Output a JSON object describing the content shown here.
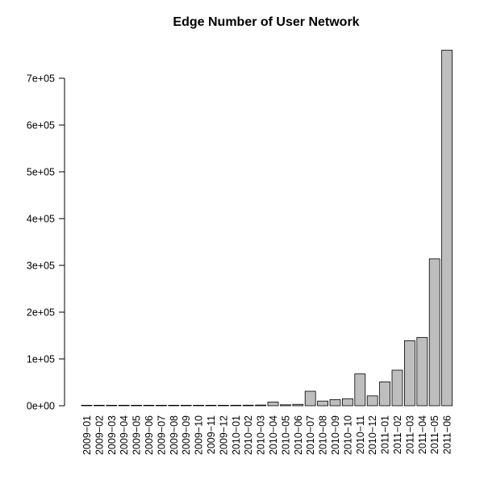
{
  "chart_data": {
    "type": "bar",
    "title": "Edge Number of User Network",
    "xlabel": "",
    "ylabel": "",
    "categories": [
      "2009-01",
      "2009-02",
      "2009-03",
      "2009-04",
      "2009-05",
      "2009-06",
      "2009-07",
      "2009-08",
      "2009-09",
      "2009-10",
      "2009-11",
      "2009-12",
      "2010-01",
      "2010-02",
      "2010-03",
      "2010-04",
      "2010-05",
      "2010-06",
      "2010-07",
      "2010-08",
      "2010-09",
      "2010-10",
      "2010-11",
      "2010-12",
      "2011-01",
      "2011-02",
      "2011-03",
      "2011-04",
      "2011-05",
      "2011-06"
    ],
    "category_labels": [
      "2009−01",
      "2009−02",
      "2009−03",
      "2009−04",
      "2009−05",
      "2009−06",
      "2009−07",
      "2009−08",
      "2009−09",
      "2009−10",
      "2009−11",
      "2009−12",
      "2010−01",
      "2010−02",
      "2010−03",
      "2010−04",
      "2010−05",
      "2010−06",
      "2010−07",
      "2010−08",
      "2010−09",
      "2010−10",
      "2010−11",
      "2010−12",
      "2011−01",
      "2011−02",
      "2011−03",
      "2011−04",
      "2011−05",
      "2011−06"
    ],
    "values": [
      50,
      100,
      150,
      200,
      250,
      300,
      350,
      400,
      500,
      600,
      700,
      800,
      1000,
      1200,
      1500,
      8000,
      2000,
      3000,
      31000,
      10000,
      13000,
      15000,
      68000,
      21000,
      51000,
      76000,
      139000,
      146000,
      314000,
      760000
    ],
    "ylim": [
      0,
      760000
    ],
    "yticks": [
      0,
      100000,
      200000,
      300000,
      400000,
      500000,
      600000,
      700000
    ],
    "ytick_labels": [
      "0e+00",
      "1e+05",
      "2e+05",
      "3e+05",
      "4e+05",
      "5e+05",
      "6e+05",
      "7e+05"
    ],
    "grid": false,
    "colors": {
      "bar_fill": "#bebebe",
      "bar_stroke": "#000000",
      "axis": "#000000"
    }
  }
}
